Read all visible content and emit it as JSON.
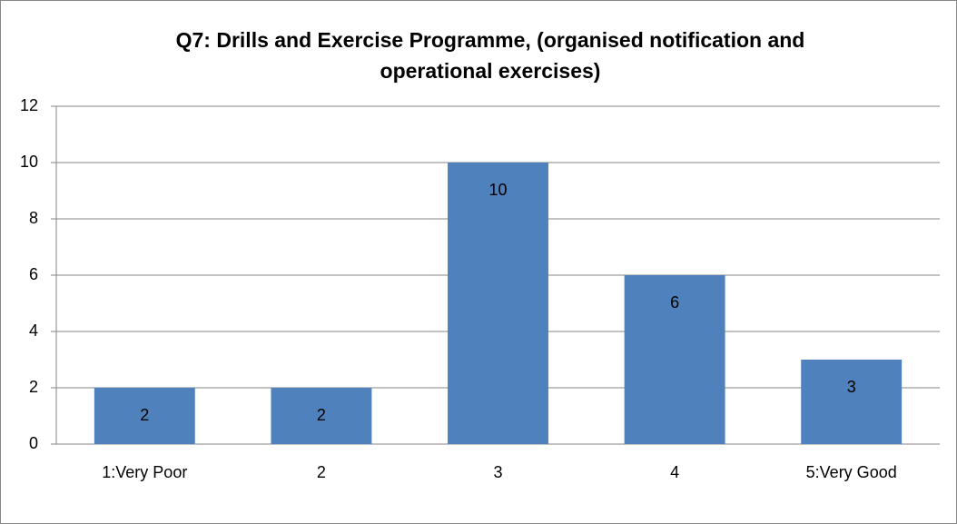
{
  "chart_data": {
    "type": "bar",
    "title": [
      "Q7: Drills and Exercise Programme, (organised notification and",
      "operational exercises)"
    ],
    "categories": [
      "1:Very Poor",
      "2",
      "3",
      "4",
      "5:Very Good"
    ],
    "values": [
      2,
      2,
      10,
      6,
      3
    ],
    "color": "#4f81bd",
    "ylim": [
      0,
      12
    ],
    "yticks": [
      0,
      2,
      4,
      6,
      8,
      10,
      12
    ],
    "grid": true
  }
}
